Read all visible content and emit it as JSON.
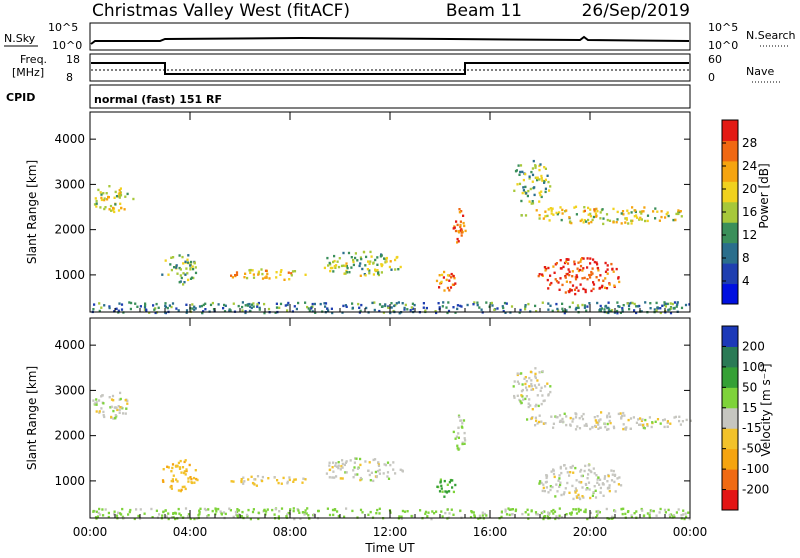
{
  "header": {
    "station": "Christmas Valley West (fitACF)",
    "beam": "Beam 11",
    "date": "26/Sep/2019"
  },
  "status_panels": {
    "nsky_label": "N.Sky",
    "nsearch_label": "N.Search",
    "freq_label_1": "Freq.",
    "freq_label_2": "[MHz]",
    "nave_label": "Nave",
    "cpid_label": "CPID",
    "cpid_text": "normal (fast) 151 RF",
    "noise_ticks": [
      "10^5",
      "10^0"
    ],
    "freq_ticks": [
      "18",
      "8"
    ],
    "nave_ticks": [
      "60",
      "0"
    ]
  },
  "chart_data": [
    {
      "type": "heatmap",
      "title": "",
      "xlabel": "",
      "ylabel": "Slant Range [km]",
      "x_ticks": [
        "00:00",
        "04:00",
        "08:00",
        "12:00",
        "16:00",
        "20:00",
        "00:00"
      ],
      "y_ticks": [
        1000,
        2000,
        3000,
        4000
      ],
      "xlim": [
        0,
        24
      ],
      "ylim": [
        180,
        4600
      ],
      "colorbar_label": "Power [dB]",
      "colorbar_ticks": [
        4,
        8,
        12,
        16,
        20,
        24,
        28
      ],
      "colorbar_range": [
        0,
        32
      ],
      "colorscale": [
        "#0010e0",
        "#1f3fb0",
        "#2a6e8c",
        "#3a8f5a",
        "#a7c83a",
        "#f1d21e",
        "#f5a40f",
        "#f06812",
        "#e41a14"
      ],
      "regions": [
        {
          "t0": 0.0,
          "t1": 1.7,
          "r0": 2400,
          "r1": 3000,
          "level": 18
        },
        {
          "t0": 2.8,
          "t1": 4.3,
          "r0": 800,
          "r1": 1500,
          "level": 14
        },
        {
          "t0": 5.5,
          "t1": 8.7,
          "r0": 900,
          "r1": 1150,
          "level": 21
        },
        {
          "t0": 9.2,
          "t1": 12.5,
          "r0": 1000,
          "r1": 1550,
          "level": 16
        },
        {
          "t0": 13.8,
          "t1": 14.6,
          "r0": 650,
          "r1": 1100,
          "level": 26
        },
        {
          "t0": 14.5,
          "t1": 15.0,
          "r0": 1700,
          "r1": 2500,
          "level": 27
        },
        {
          "t0": 17.2,
          "t1": 24.0,
          "r0": 2150,
          "r1": 2550,
          "level": 19
        },
        {
          "t0": 17.8,
          "t1": 21.3,
          "r0": 600,
          "r1": 1400,
          "level": 29
        },
        {
          "t0": 16.8,
          "t1": 18.4,
          "r0": 2600,
          "r1": 3550,
          "level": 15
        },
        {
          "t0": 0.0,
          "t1": 24.0,
          "r0": 180,
          "r1": 420,
          "level": 10
        }
      ]
    },
    {
      "type": "heatmap",
      "title": "",
      "xlabel": "Time UT",
      "ylabel": "Slant Range [km]",
      "x_ticks": [
        "00:00",
        "04:00",
        "08:00",
        "12:00",
        "16:00",
        "20:00",
        "00:00"
      ],
      "y_ticks": [
        1000,
        2000,
        3000,
        4000
      ],
      "xlim": [
        0,
        24
      ],
      "ylim": [
        180,
        4600
      ],
      "colorbar_label": "Velocity [m s⁻¹]",
      "colorbar_ticks": [
        200,
        100,
        50,
        15,
        -15,
        -50,
        -100,
        -200
      ],
      "colorscale": [
        "#1c39b8",
        "#2a7a55",
        "#35a035",
        "#7ed33a",
        "#c6c6c0",
        "#f2c22a",
        "#f5a40f",
        "#f06a12",
        "#e31515"
      ],
      "regions": [
        {
          "t0": 0.0,
          "t1": 1.7,
          "r0": 2400,
          "r1": 3000,
          "level": 0
        },
        {
          "t0": 2.8,
          "t1": 4.3,
          "r0": 800,
          "r1": 1500,
          "level": -40
        },
        {
          "t0": 5.5,
          "t1": 8.7,
          "r0": 900,
          "r1": 1150,
          "level": -20
        },
        {
          "t0": 9.2,
          "t1": 12.5,
          "r0": 1000,
          "r1": 1550,
          "level": 0
        },
        {
          "t0": 13.8,
          "t1": 14.6,
          "r0": 650,
          "r1": 1100,
          "level": 60
        },
        {
          "t0": 14.5,
          "t1": 15.0,
          "r0": 1700,
          "r1": 2500,
          "level": 20
        },
        {
          "t0": 17.2,
          "t1": 24.0,
          "r0": 2150,
          "r1": 2550,
          "level": 0
        },
        {
          "t0": 17.8,
          "t1": 21.3,
          "r0": 600,
          "r1": 1400,
          "level": 0
        },
        {
          "t0": 16.8,
          "t1": 18.4,
          "r0": 2600,
          "r1": 3550,
          "level": 0
        },
        {
          "t0": 0.0,
          "t1": 24.0,
          "r0": 180,
          "r1": 420,
          "level": 25
        }
      ]
    }
  ]
}
